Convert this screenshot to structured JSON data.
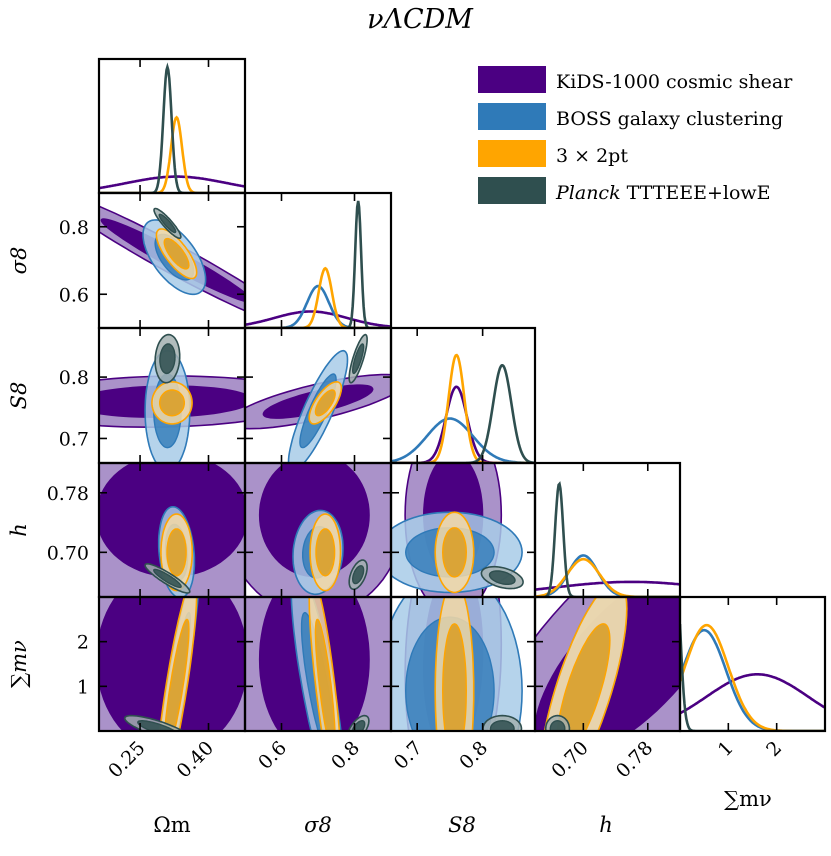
{
  "chart_data": {
    "type": "corner_plot",
    "title": "νΛCDM",
    "colors": {
      "kids": "#4b0082",
      "boss": "#2f7ab8",
      "threex2": "#ffa500",
      "planck": "#2f4f4f"
    },
    "legend": {
      "placement": "top-right",
      "entries": [
        {
          "key": "kids",
          "label": "KiDS-1000 cosmic shear"
        },
        {
          "key": "boss",
          "label": "BOSS galaxy clustering"
        },
        {
          "key": "threex2",
          "label": "3 × 2pt"
        },
        {
          "key": "planck",
          "label_italic": "Planck",
          "label": " TTTEEE+lowE"
        }
      ]
    },
    "parameters": [
      {
        "name": "Ωm",
        "range": [
          0.16,
          0.48
        ],
        "ticks": [
          0.25,
          0.4
        ],
        "tick_labels": [
          "0.25",
          "0.40"
        ]
      },
      {
        "name": "σ8",
        "range": [
          0.5,
          0.9
        ],
        "ticks": [
          0.6,
          0.8
        ],
        "tick_labels": [
          "0.6",
          "0.8"
        ]
      },
      {
        "name": "S8",
        "range": [
          0.66,
          0.88
        ],
        "ticks": [
          0.7,
          0.8
        ],
        "tick_labels": [
          "0.7",
          "0.8"
        ]
      },
      {
        "name": "h",
        "range": [
          0.64,
          0.82
        ],
        "ticks": [
          0.7,
          0.78
        ],
        "tick_labels": [
          "0.70",
          "0.78"
        ]
      },
      {
        "name": "∑mν",
        "range": [
          0.0,
          3.0
        ],
        "ticks": [
          1,
          2
        ],
        "tick_labels": [
          "1",
          "2"
        ]
      }
    ],
    "y_axes": [
      {
        "param": 1,
        "ticks": [
          0.6,
          0.8
        ],
        "tick_labels": [
          "0.6",
          "0.8"
        ]
      },
      {
        "param": 2,
        "ticks": [
          0.7,
          0.8
        ],
        "tick_labels": [
          "0.7",
          "0.8"
        ]
      },
      {
        "param": 3,
        "ticks": [
          0.7,
          0.78
        ],
        "tick_labels": [
          "0.70",
          "0.78"
        ]
      },
      {
        "param": 4,
        "ticks": [
          1,
          2
        ],
        "tick_labels": [
          "1",
          "2"
        ]
      }
    ],
    "marginals": [
      {
        "param": 0,
        "series": [
          {
            "key": "kids",
            "peaks": [
              {
                "mu": 0.33,
                "sigma": 0.11,
                "amp": 0.13
              }
            ]
          },
          {
            "key": "threex2",
            "peaks": [
              {
                "mu": 0.33,
                "sigma": 0.012,
                "amp": 0.6
              }
            ]
          },
          {
            "key": "planck",
            "peaks": [
              {
                "mu": 0.31,
                "sigma": 0.009,
                "amp": 1.0
              }
            ]
          }
        ]
      },
      {
        "param": 1,
        "series": [
          {
            "key": "kids",
            "peaks": [
              {
                "mu": 0.68,
                "sigma": 0.1,
                "amp": 0.13
              }
            ]
          },
          {
            "key": "boss",
            "peaks": [
              {
                "mu": 0.7,
                "sigma": 0.03,
                "amp": 0.33
              }
            ]
          },
          {
            "key": "threex2",
            "peaks": [
              {
                "mu": 0.72,
                "sigma": 0.018,
                "amp": 0.47
              }
            ]
          },
          {
            "key": "planck",
            "peaks": [
              {
                "mu": 0.81,
                "sigma": 0.008,
                "amp": 1.0
              }
            ]
          }
        ]
      },
      {
        "param": 2,
        "series": [
          {
            "key": "kids",
            "peaks": [
              {
                "mu": 0.76,
                "sigma": 0.016,
                "amp": 0.6
              }
            ]
          },
          {
            "key": "boss",
            "peaks": [
              {
                "mu": 0.75,
                "sigma": 0.035,
                "amp": 0.35
              }
            ]
          },
          {
            "key": "threex2",
            "peaks": [
              {
                "mu": 0.76,
                "sigma": 0.012,
                "amp": 0.85
              }
            ]
          },
          {
            "key": "planck",
            "peaks": [
              {
                "mu": 0.83,
                "sigma": 0.014,
                "amp": 0.77
              }
            ]
          }
        ]
      },
      {
        "param": 3,
        "series": [
          {
            "key": "kids",
            "peaks": [
              {
                "mu": 0.76,
                "sigma": 0.1,
                "amp": 0.12
              }
            ]
          },
          {
            "key": "boss",
            "peaks": [
              {
                "mu": 0.7,
                "sigma": 0.018,
                "amp": 0.33
              }
            ]
          },
          {
            "key": "threex2",
            "peaks": [
              {
                "mu": 0.7,
                "sigma": 0.02,
                "amp": 0.3
              }
            ]
          },
          {
            "key": "planck",
            "peaks": [
              {
                "mu": 0.67,
                "sigma": 0.005,
                "amp": 0.9
              }
            ]
          }
        ]
      },
      {
        "param": 4,
        "series": [
          {
            "key": "kids",
            "peaks": [
              {
                "mu": 1.6,
                "sigma": 1.05,
                "amp": 0.45
              }
            ]
          },
          {
            "key": "boss",
            "peaks": [
              {
                "mu": 0.5,
                "sigma": 0.45,
                "amp": 0.8
              }
            ]
          },
          {
            "key": "threex2",
            "peaks": [
              {
                "mu": 0.55,
                "sigma": 0.45,
                "amp": 0.84
              }
            ]
          },
          {
            "key": "planck",
            "peaks": [
              {
                "mu": -0.1,
                "sigma": 0.1,
                "amp": 1.4
              }
            ]
          }
        ]
      }
    ]
  }
}
